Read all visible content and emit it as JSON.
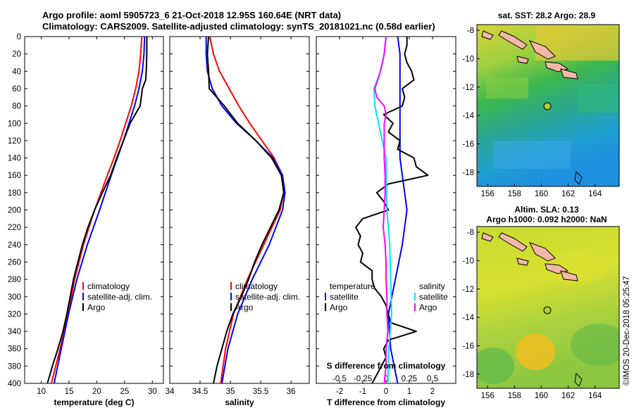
{
  "title": {
    "line1": "Argo profile: aoml 5905723_6 21-Oct-2018 12.95S 160.64E (NRT data)",
    "line2": "Climatology: CARS2009. Satellite-adjusted climatology: synTS_20181021.nc (0.58d earlier)"
  },
  "colors": {
    "climatology": "#ff0000",
    "satellite": "#0000ff",
    "argo": "#000000",
    "salinity_satellite": "#00e0ff",
    "salinity_argo": "#ff00ff"
  },
  "legends": {
    "climatology": "climatology",
    "satellite_adj": "satellite-adj. clim.",
    "argo": "Argo",
    "temperature_header": "temperature",
    "salinity_header": "salinity",
    "satellite": "satellite"
  },
  "maps": {
    "sst_title": "sat. SST: 28.2 Argo: 28.9",
    "sla_title1": "Altim. SLA: 0.13",
    "sla_title2": "Argo h1000: 0.092 h2000: NaN",
    "lon_ticks": [
      "156",
      "158",
      "160",
      "162",
      "164"
    ],
    "lat_ticks": [
      "-8",
      "-10",
      "-12",
      "-14",
      "-16",
      "-18"
    ],
    "float_lon": 160.64,
    "float_lat": -12.95
  },
  "credit": "©IMOS 20-Dec-2018 05:25:47",
  "chart_data": [
    {
      "type": "line",
      "title": "",
      "xlabel": "temperature (deg C)",
      "ylabel": "",
      "xlim": [
        7,
        32
      ],
      "ylim": [
        0,
        400
      ],
      "x_ticks": [
        10,
        15,
        20,
        25,
        30
      ],
      "y_ticks": [
        0,
        20,
        40,
        60,
        80,
        100,
        120,
        140,
        160,
        180,
        200,
        220,
        240,
        260,
        280,
        300,
        320,
        340,
        360,
        380,
        400
      ],
      "series": [
        {
          "name": "climatology",
          "depth": [
            0,
            20,
            40,
            60,
            80,
            100,
            120,
            140,
            160,
            200,
            240,
            280,
            320,
            360,
            400
          ],
          "values": [
            28.1,
            27.9,
            27.6,
            27.0,
            26.2,
            25.2,
            24.2,
            23.1,
            21.9,
            19.6,
            17.6,
            16.0,
            14.8,
            13.4,
            11.8
          ]
        },
        {
          "name": "satellite-adj. clim.",
          "depth": [
            0,
            20,
            40,
            60,
            80,
            100,
            120,
            140,
            160,
            200,
            240,
            280,
            320,
            360,
            400
          ],
          "values": [
            28.6,
            28.5,
            28.2,
            27.6,
            26.8,
            25.8,
            24.8,
            23.7,
            22.6,
            20.5,
            18.3,
            16.4,
            14.9,
            13.6,
            12.3
          ]
        },
        {
          "name": "Argo",
          "depth": [
            0,
            20,
            40,
            50,
            60,
            80,
            100,
            120,
            140,
            160,
            180,
            200,
            220,
            240,
            260,
            280,
            300,
            320,
            340,
            360,
            380,
            400
          ],
          "values": [
            29.0,
            29.0,
            28.9,
            28.8,
            28.2,
            27.8,
            26.0,
            24.8,
            23.6,
            22.5,
            21.0,
            19.6,
            18.4,
            17.4,
            16.6,
            15.8,
            15.2,
            14.6,
            13.9,
            13.0,
            12.0,
            11.1
          ]
        }
      ]
    },
    {
      "type": "line",
      "title": "",
      "xlabel": "salinity",
      "ylabel": "",
      "xlim": [
        34.0,
        36.3
      ],
      "ylim": [
        0,
        400
      ],
      "x_ticks": [
        34,
        34.5,
        35,
        35.5,
        36
      ],
      "series": [
        {
          "name": "climatology",
          "depth": [
            0,
            20,
            40,
            60,
            80,
            100,
            120,
            140,
            160,
            180,
            200,
            240,
            280,
            320,
            360,
            400
          ],
          "values": [
            34.66,
            34.72,
            34.82,
            34.98,
            35.14,
            35.32,
            35.52,
            35.72,
            35.86,
            35.88,
            35.82,
            35.55,
            35.28,
            35.05,
            34.92,
            34.84
          ]
        },
        {
          "name": "satellite-adj. clim.",
          "depth": [
            0,
            20,
            40,
            60,
            80,
            100,
            120,
            140,
            160,
            180,
            200,
            240,
            280,
            320,
            360,
            400
          ],
          "values": [
            34.6,
            34.6,
            34.62,
            34.7,
            34.86,
            35.1,
            35.42,
            35.7,
            35.86,
            35.9,
            35.86,
            35.64,
            35.36,
            35.12,
            34.96,
            34.86
          ]
        },
        {
          "name": "Argo",
          "depth": [
            0,
            20,
            40,
            60,
            80,
            100,
            120,
            140,
            160,
            180,
            200,
            220,
            240,
            260,
            280,
            300,
            320,
            340,
            360,
            380,
            400
          ],
          "values": [
            34.64,
            34.62,
            34.64,
            34.65,
            34.9,
            35.12,
            35.42,
            35.68,
            35.84,
            35.88,
            35.8,
            35.66,
            35.52,
            35.4,
            35.3,
            35.18,
            35.04,
            34.94,
            34.86,
            34.78,
            34.72
          ]
        }
      ]
    },
    {
      "type": "line",
      "title": "",
      "xlabel": "T difference from climatology",
      "xlabel2": "S difference from climatology",
      "ylabel": "",
      "xlim": [
        -3,
        3
      ],
      "ylim": [
        0,
        400
      ],
      "x_ticks": [
        -2,
        -1,
        0,
        1,
        2
      ],
      "x_ticks_salinity": [
        "-0.5",
        "-0.25",
        "0",
        "0.25",
        "0.5"
      ],
      "salinity_scale": 4,
      "series": [
        {
          "name": "temperature satellite",
          "quantity": "T",
          "depth": [
            0,
            20,
            40,
            60,
            80,
            100,
            120,
            140,
            160,
            200,
            240,
            280,
            320,
            360,
            400
          ],
          "values": [
            0.5,
            0.6,
            0.6,
            0.6,
            0.6,
            0.6,
            0.6,
            0.6,
            0.7,
            0.9,
            0.7,
            0.4,
            0.1,
            0.2,
            0.5
          ]
        },
        {
          "name": "temperature Argo",
          "quantity": "T",
          "depth": [
            0,
            10,
            20,
            30,
            40,
            50,
            60,
            70,
            80,
            90,
            100,
            110,
            120,
            130,
            140,
            150,
            160,
            170,
            180,
            190,
            200,
            210,
            220,
            230,
            240,
            250,
            260,
            270,
            280,
            290,
            300,
            310,
            320,
            330,
            340,
            350,
            360,
            370,
            380,
            390,
            400
          ],
          "values": [
            0.9,
            0.9,
            0.8,
            0.9,
            1.1,
            1.2,
            0.7,
            0.8,
            0.7,
            -0.1,
            0.3,
            0.1,
            0.6,
            0.5,
            1.2,
            1.3,
            1.8,
            0.1,
            -0.4,
            -0.1,
            0.1,
            -1.0,
            -1.3,
            -1.1,
            -1.2,
            -1.0,
            -1.1,
            -0.6,
            -0.6,
            -0.5,
            -0.2,
            0.0,
            0.1,
            0.2,
            1.3,
            0.1,
            -0.1,
            0.0,
            -0.2,
            -0.4,
            -0.6
          ]
        },
        {
          "name": "salinity satellite",
          "quantity": "S",
          "depth": [
            0,
            20,
            40,
            60,
            80,
            100,
            120,
            140,
            160,
            200,
            240,
            280,
            320,
            360,
            400
          ],
          "values": [
            0.0,
            -0.02,
            -0.06,
            -0.13,
            -0.12,
            -0.08,
            -0.04,
            0.0,
            0.0,
            0.01,
            0.04,
            0.05,
            0.06,
            0.03,
            0.02
          ]
        },
        {
          "name": "salinity Argo",
          "quantity": "S",
          "depth": [
            0,
            20,
            40,
            60,
            70,
            80,
            90,
            100,
            110,
            120,
            130,
            140,
            160,
            180,
            200,
            220,
            240,
            260,
            280,
            300,
            320,
            340,
            360,
            380,
            400
          ],
          "values": [
            0.0,
            -0.02,
            -0.06,
            -0.12,
            -0.1,
            -0.02,
            0.0,
            -0.02,
            -0.02,
            -0.02,
            -0.02,
            -0.02,
            -0.01,
            -0.01,
            -0.02,
            -0.03,
            -0.01,
            0.0,
            0.0,
            0.01,
            0.01,
            0.02,
            0.0,
            0.0,
            -0.02
          ]
        }
      ]
    }
  ]
}
